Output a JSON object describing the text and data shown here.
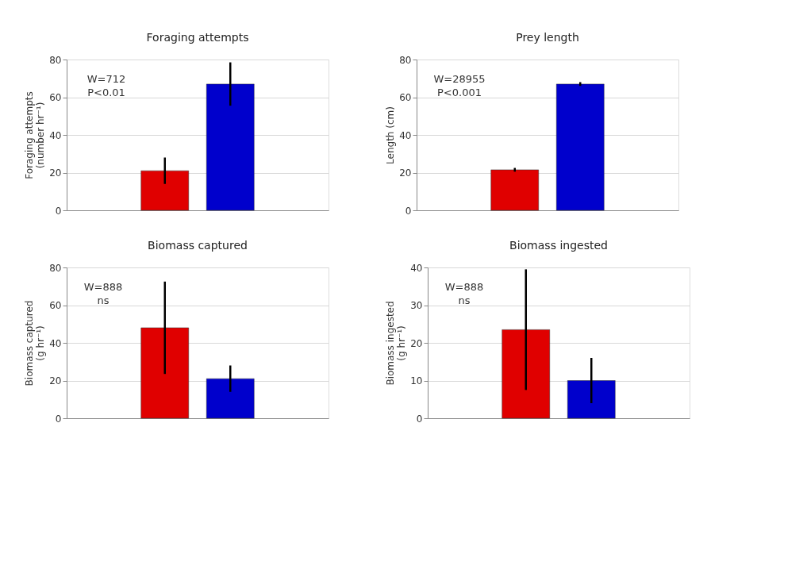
{
  "chart_data": [
    {
      "type": "bar",
      "title": "Foraging attempts",
      "ylabel": "Foraging attempts\n(number hr⁻¹)",
      "categories": [
        null,
        null
      ],
      "values": [
        21,
        67
      ],
      "errors": [
        7,
        11.5
      ],
      "colors": [
        "#e00000",
        "#0000cc"
      ],
      "ylim": [
        0,
        80
      ],
      "yticks": [
        0,
        20,
        40,
        60,
        80
      ],
      "grid": "y",
      "tick_labels": "y",
      "annotations": [
        "W=712",
        "P<0.01"
      ]
    },
    {
      "type": "bar",
      "title": "Prey length",
      "ylabel": "Length (cm)",
      "categories": [
        null,
        null
      ],
      "values": [
        21.5,
        67
      ],
      "errors": [
        1,
        1
      ],
      "colors": [
        "#e00000",
        "#0000cc"
      ],
      "ylim": [
        0,
        80
      ],
      "yticks": [
        0,
        20,
        40,
        60,
        80
      ],
      "grid": "y",
      "tick_labels": "y",
      "annotations": [
        "W=28955",
        "P<0.001"
      ]
    },
    {
      "type": "bar",
      "title": "Biomass captured",
      "ylabel": "Biomass captured\n(g hr⁻¹)",
      "categories": [
        null,
        null
      ],
      "values": [
        48,
        21
      ],
      "errors": [
        24.5,
        7
      ],
      "colors": [
        "#e00000",
        "#0000cc"
      ],
      "ylim": [
        0,
        80
      ],
      "yticks": [
        0,
        20,
        40,
        60,
        80
      ],
      "grid": "y",
      "tick_labels": "y",
      "annotations": [
        "W=888",
        "ns"
      ]
    },
    {
      "type": "bar",
      "title": "Biomass ingested",
      "ylabel": "Biomass ingested\n(g hr⁻¹)",
      "categories": [
        null,
        null
      ],
      "values": [
        23.5,
        10
      ],
      "errors": [
        16,
        6
      ],
      "colors": [
        "#e00000",
        "#0000cc"
      ],
      "ylim": [
        0,
        40
      ],
      "yticks": [
        0,
        10,
        20,
        30,
        40
      ],
      "grid": "y",
      "tick_labels": "y",
      "annotations": [
        "W=888",
        "ns"
      ]
    }
  ]
}
